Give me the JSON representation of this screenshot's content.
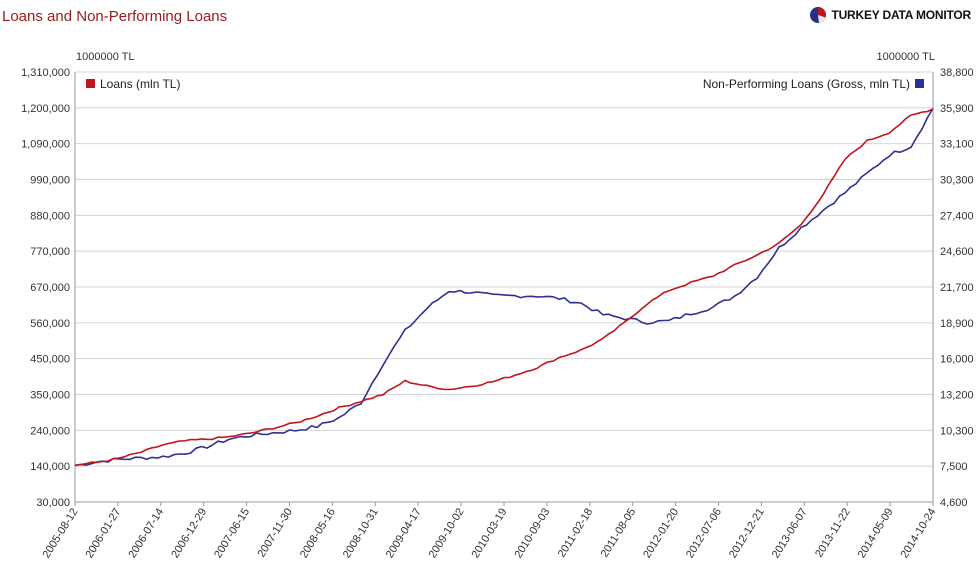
{
  "header": {
    "title": "Loans and Non-Performing Loans",
    "brand": "TURKEY DATA MONITOR",
    "brand_icon": "pie-chart-logo",
    "colors": {
      "title": "#9b1c1c",
      "brand_pie": [
        "#c0161d",
        "#2a2f83"
      ]
    }
  },
  "chart_data": {
    "type": "line",
    "title": "Loans and Non-Performing Loans",
    "y_unit_left": "1000000 TL",
    "y_unit_right": "1000000 TL",
    "y_left_ticks": [
      "1,310,000",
      "1,200,000",
      "1,090,000",
      "990,000",
      "880,000",
      "770,000",
      "670,000",
      "560,000",
      "450,000",
      "350,000",
      "240,000",
      "140,000",
      "30,000"
    ],
    "y_right_ticks": [
      "38,800",
      "35,900",
      "33,100",
      "30,300",
      "27,400",
      "24,600",
      "21,700",
      "18,900",
      "16,000",
      "13,200",
      "10,300",
      "7,500",
      "4,600"
    ],
    "x_ticks": [
      "2005-08-12",
      "2006-01-27",
      "2006-07-14",
      "2006-12-29",
      "2007-06-15",
      "2007-11-30",
      "2008-05-16",
      "2008-10-31",
      "2009-04-17",
      "2009-10-02",
      "2010-03-19",
      "2010-09-03",
      "2011-02-18",
      "2011-08-05",
      "2012-01-20",
      "2012-07-06",
      "2012-12-21",
      "2013-06-07",
      "2013-11-22",
      "2014-05-09",
      "2014-10-24"
    ],
    "grid": true,
    "legend": {
      "left": {
        "label": "Loans (mln TL)",
        "axis": "left",
        "color": "#c0161d"
      },
      "right": {
        "label": "Non-Performing Loans (Gross, mln TL)",
        "axis": "right",
        "color": "#2e3192"
      }
    },
    "series": [
      {
        "name": "Loans (mln TL)",
        "axis": "left",
        "color": "#c0161d",
        "values": [
          140000,
          148000,
          160000,
          178000,
          200000,
          212000,
          217000,
          224000,
          235000,
          250000,
          265000,
          286000,
          310000,
          330000,
          350000,
          390000,
          375000,
          365000,
          375000,
          388000,
          408000,
          430000,
          460000,
          482000,
          515000,
          565000,
          620000,
          660000,
          683000,
          703000,
          735000,
          765000,
          800000,
          855000,
          945000,
          1050000,
          1105000,
          1130000,
          1180000,
          1200000
        ],
        "x_end": "2014-10-24"
      },
      {
        "name": "Non-Performing Loans (Gross, mln TL)",
        "axis": "right",
        "color": "#2e3192",
        "values": [
          7500,
          7800,
          8000,
          8100,
          8200,
          8500,
          9000,
          9600,
          9900,
          10100,
          10300,
          10600,
          11300,
          12500,
          15600,
          18200,
          20000,
          21400,
          21300,
          21000,
          21000,
          21000,
          20800,
          20400,
          19500,
          19200,
          18900,
          19000,
          19600,
          20100,
          21000,
          22500,
          24800,
          26400,
          27800,
          29200,
          30700,
          32200,
          32900,
          35900
        ],
        "x_end": "2014-10-24"
      }
    ],
    "y_left_range": [
      30000,
      1310000
    ],
    "y_right_range": [
      4600,
      38800
    ]
  }
}
